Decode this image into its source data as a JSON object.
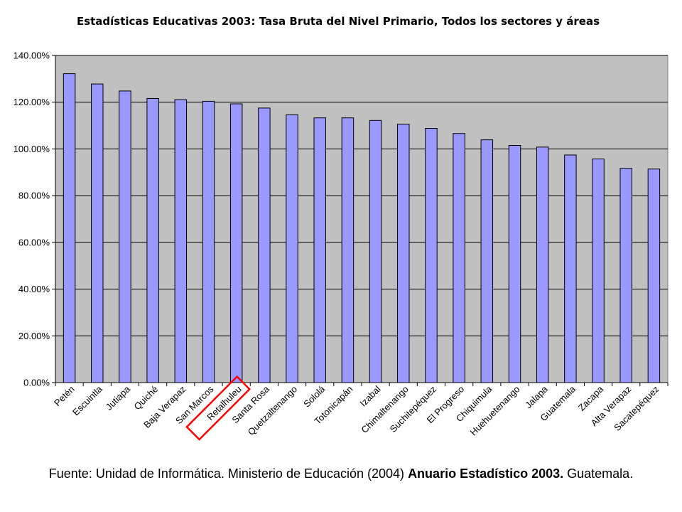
{
  "chart_data": {
    "type": "bar",
    "title": "Estadísticas Educativas 2003: Tasa Bruta del Nivel Primario, Todos los sectores y áreas",
    "categories": [
      "Petén",
      "Escuintla",
      "Jutiapa",
      "Quiché",
      "Baja Verapaz",
      "San Marcos",
      "Retalhuleu",
      "Santa Rosa",
      "Quetzaltenango",
      "Sololá",
      "Totonicapán",
      "Izabal",
      "Chimaltenango",
      "Suchitepéquez",
      "El Progreso",
      "Chiquimula",
      "Huehuetenango",
      "Jalapa",
      "Guatemala",
      "Zacapa",
      "Alta Verapaz",
      "Sacatepéquez"
    ],
    "values": [
      132.2,
      127.8,
      124.8,
      121.6,
      121.1,
      120.4,
      119.3,
      117.5,
      114.6,
      113.3,
      113.3,
      112.2,
      110.6,
      108.8,
      106.6,
      103.9,
      101.5,
      100.8,
      97.4,
      95.7,
      91.7,
      91.4
    ],
    "ylim": [
      0,
      140
    ],
    "yticks": [
      "0.00%",
      "20.00%",
      "40.00%",
      "60.00%",
      "80.00%",
      "100.00%",
      "120.00%",
      "140.00%"
    ],
    "grid": true,
    "highlighted_category": "Retalhuleu",
    "colors": {
      "bar_fill": "#9999ff",
      "bar_stroke": "#000000",
      "plot_background": "#c0c0c0",
      "gridline": "#000000",
      "highlight_box": "#ff0000"
    }
  },
  "source": {
    "prefix": "Fuente: Unidad de Informática. Ministerio de Educación (2004) ",
    "bold": "Anuario Estadístico 2003.",
    "suffix": " Guatemala."
  }
}
